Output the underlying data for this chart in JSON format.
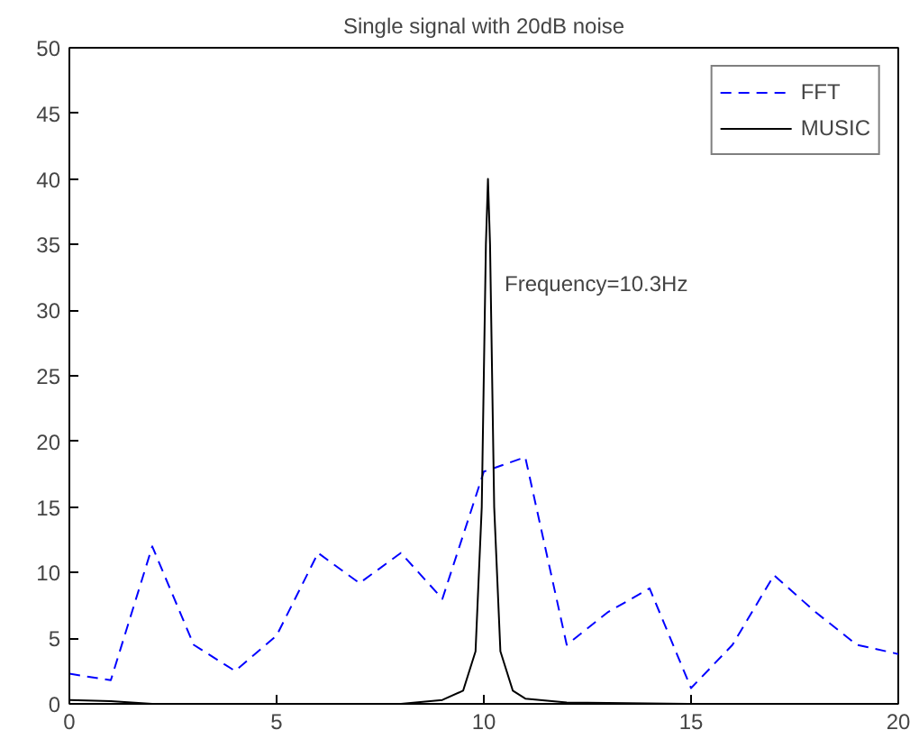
{
  "chart_data": {
    "type": "line",
    "title": "Single signal with 20dB noise",
    "xlim": [
      0,
      20
    ],
    "ylim": [
      0,
      50
    ],
    "xticks": [
      0,
      5,
      10,
      15,
      20
    ],
    "yticks": [
      0,
      5,
      10,
      15,
      20,
      25,
      30,
      35,
      40,
      45,
      50
    ],
    "grid": false,
    "legend": "top right",
    "series": [
      {
        "name": "FFT",
        "color": "#0000ff",
        "line_style": "dashed",
        "x": [
          0,
          1,
          2,
          3,
          4,
          5,
          6,
          7,
          8,
          9,
          10,
          11,
          12,
          13,
          14,
          15,
          16,
          17,
          18,
          19,
          20
        ],
        "values": [
          2.3,
          1.8,
          12,
          4.5,
          2.5,
          5.2,
          11.5,
          9.2,
          11.5,
          8,
          17.7,
          18.8,
          4.5,
          7,
          8.8,
          1.2,
          4.5,
          9.8,
          7,
          4.5,
          3.8
        ]
      },
      {
        "name": "MUSIC",
        "color": "#000000",
        "line_style": "solid",
        "x": [
          0,
          1,
          2,
          5,
          8,
          9,
          9.5,
          9.8,
          9.95,
          10.05,
          10.1,
          10.15,
          10.25,
          10.4,
          10.7,
          11,
          12,
          15,
          20
        ],
        "values": [
          0.3,
          0.2,
          0,
          0,
          0,
          0.3,
          1,
          4,
          15,
          35,
          40,
          35,
          15,
          4,
          1,
          0.4,
          0.1,
          0,
          0
        ]
      }
    ],
    "annotations": [
      "Frequency=10.3Hz"
    ]
  }
}
